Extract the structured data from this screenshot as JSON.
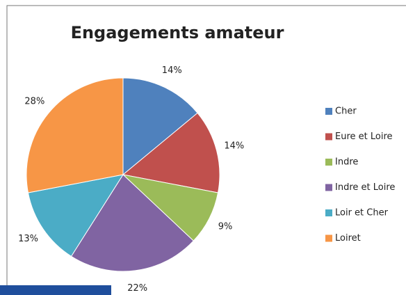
{
  "chart_data": {
    "type": "pie",
    "title": "Engagements amateur",
    "categories": [
      "Cher",
      "Eure et Loire",
      "Indre",
      "Indre et Loire",
      "Loir et Cher",
      "Loiret"
    ],
    "values": [
      14,
      14,
      9,
      22,
      13,
      28
    ],
    "value_labels": [
      "14%",
      "14%",
      "9%",
      "22%",
      "13%",
      "28%"
    ],
    "colors": [
      "#4f81bd",
      "#c0504d",
      "#9bbb59",
      "#8064a2",
      "#4bacc6",
      "#f79646"
    ],
    "legend": "right"
  }
}
